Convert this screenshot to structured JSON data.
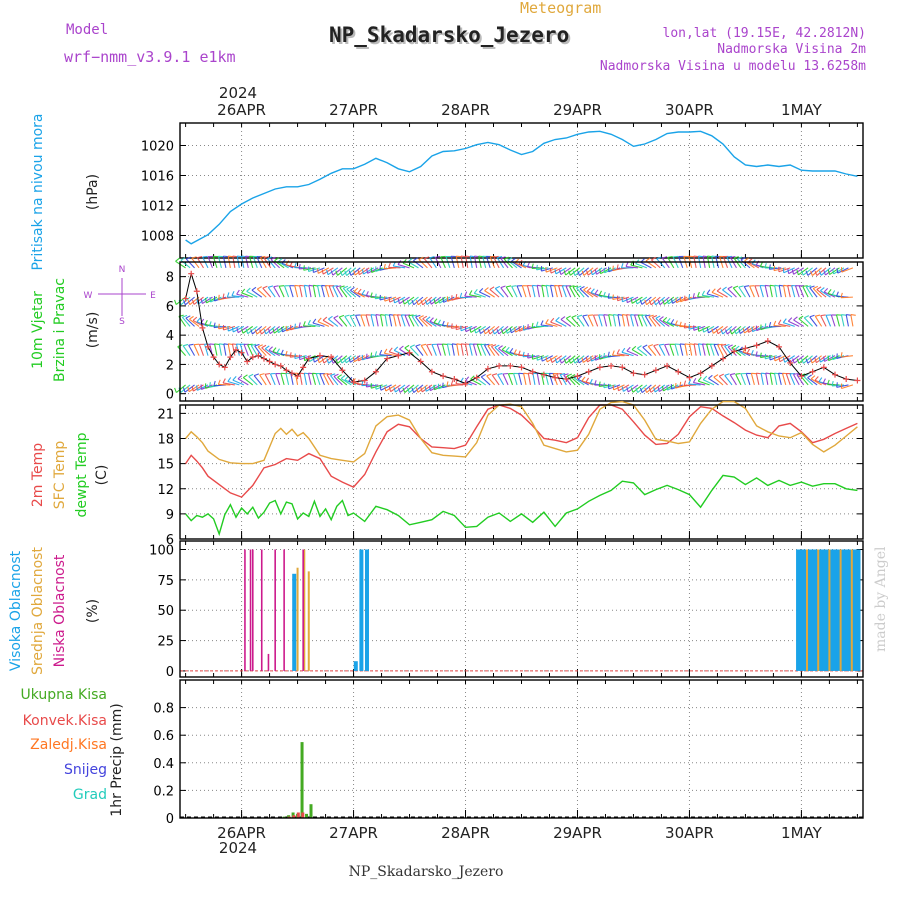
{
  "header": {
    "model_label": "Model",
    "model_name": "wrf−nmm_v3.9.1  e1km",
    "meteogram_label": "Meteogram",
    "station_title": "NP_Skadarsko_Jezero",
    "lonlat": "lon,lat (19.15E, 42.2812N)",
    "elevation": "Nadmorska Visina 2m",
    "model_elevation": "Nadmorska Visina u modelu 13.6258m",
    "year_top": "2024",
    "year_bottom": "2024",
    "footer_station": "NP_Skadarsko_Jezero",
    "credit": "made by Angel"
  },
  "colors": {
    "pressure": "#1aa3e8",
    "temp2m": "#e84a4a",
    "sfc_temp": "#e0a83c",
    "dewpt": "#22cc22",
    "high_cloud": "#1aa3e8",
    "mid_cloud": "#e0a83c",
    "low_cloud": "#cc1a8c",
    "total_precip": "#44aa22",
    "conv_precip": "#e84a4a",
    "frz_precip": "#ff7722",
    "snow": "#4444dd",
    "hail": "#22ccbb",
    "grid": "#888888"
  },
  "chart_data": [
    {
      "type": "line",
      "panel": "pressure",
      "ylabel_left": "Pritisak na nivou mora",
      "ylabel_unit": "(hPa)",
      "x_ticks": [
        "26APR",
        "27APR",
        "28APR",
        "29APR",
        "30APR",
        "1MAY"
      ],
      "x_range_days": [
        -0.55,
        5.55
      ],
      "ylim": [
        1005,
        1023
      ],
      "y_ticks": [
        1008,
        1012,
        1016,
        1020
      ],
      "grid": true,
      "series": [
        {
          "x_days": [
            -0.5,
            -0.45,
            -0.4,
            -0.3,
            -0.2,
            -0.1,
            0,
            0.1,
            0.2,
            0.3,
            0.4,
            0.5,
            0.6,
            0.7,
            0.8,
            0.9,
            1.0,
            1.1,
            1.2,
            1.3,
            1.4,
            1.5,
            1.6,
            1.7,
            1.8,
            1.9,
            2.0,
            2.1,
            2.2,
            2.3,
            2.4,
            2.5,
            2.6,
            2.7,
            2.8,
            2.9,
            3.0,
            3.1,
            3.2,
            3.3,
            3.4,
            3.5,
            3.6,
            3.7,
            3.8,
            3.9,
            4.0,
            4.1,
            4.2,
            4.3,
            4.4,
            4.5,
            4.6,
            4.7,
            4.8,
            4.9,
            5.0,
            5.1,
            5.2,
            5.3,
            5.4,
            5.5
          ],
          "values": [
            1007.4,
            1006.9,
            1007.3,
            1008.1,
            1009.5,
            1011.2,
            1012.2,
            1013.0,
            1013.6,
            1014.2,
            1014.5,
            1014.5,
            1014.8,
            1015.5,
            1016.3,
            1016.9,
            1016.9,
            1017.5,
            1018.3,
            1017.7,
            1016.9,
            1016.5,
            1017.2,
            1018.6,
            1019.2,
            1019.3,
            1019.6,
            1020.1,
            1020.4,
            1020.1,
            1019.4,
            1018.8,
            1019.2,
            1020.3,
            1020.8,
            1021.0,
            1021.5,
            1021.8,
            1021.9,
            1021.5,
            1020.8,
            1019.9,
            1020.2,
            1020.8,
            1021.6,
            1021.8,
            1021.8,
            1021.9,
            1021.3,
            1020.2,
            1018.5,
            1017.4,
            1017.2,
            1017.4,
            1017.2,
            1017.4,
            1016.7,
            1016.6,
            1016.6,
            1016.6,
            1016.2,
            1015.9
          ]
        }
      ]
    },
    {
      "type": "barbs",
      "panel": "wind",
      "ylabel_left_1": "10m Vjetar",
      "ylabel_left_2": "Brzina i Pravac",
      "ylabel_unit": "(m/s)",
      "compass": [
        "N",
        "E",
        "S",
        "W"
      ],
      "ylim": [
        -0.5,
        9
      ],
      "y_ticks": [
        0,
        2,
        4,
        6,
        8
      ],
      "grid": true,
      "series": [
        {
          "name": "speed",
          "x_days": [
            -0.5,
            -0.45,
            -0.4,
            -0.35,
            -0.3,
            -0.25,
            -0.2,
            -0.15,
            -0.1,
            -0.05,
            0,
            0.05,
            0.1,
            0.15,
            0.2,
            0.25,
            0.3,
            0.35,
            0.4,
            0.45,
            0.5,
            0.55,
            0.6,
            0.7,
            0.8,
            0.9,
            1.0,
            1.1,
            1.2,
            1.3,
            1.4,
            1.5,
            1.6,
            1.7,
            1.8,
            1.9,
            2.0,
            2.1,
            2.2,
            2.3,
            2.4,
            2.5,
            2.6,
            2.7,
            2.8,
            2.9,
            3.0,
            3.1,
            3.2,
            3.3,
            3.4,
            3.5,
            3.6,
            3.7,
            3.8,
            3.9,
            4.0,
            4.1,
            4.2,
            4.3,
            4.4,
            4.5,
            4.6,
            4.7,
            4.8,
            4.9,
            5.0,
            5.1,
            5.2,
            5.3,
            5.4,
            5.5
          ],
          "values": [
            6.5,
            8.2,
            7.0,
            4.5,
            3.2,
            2.5,
            2.0,
            1.8,
            2.5,
            3.0,
            2.8,
            2.2,
            2.5,
            2.6,
            2.4,
            2.2,
            2.0,
            1.9,
            1.6,
            1.4,
            1.2,
            1.8,
            2.4,
            2.6,
            2.5,
            1.6,
            0.8,
            0.9,
            1.5,
            2.4,
            2.6,
            2.8,
            2.2,
            1.5,
            1.2,
            1.0,
            0.7,
            1.1,
            1.7,
            1.9,
            1.9,
            1.8,
            1.5,
            1.3,
            1.1,
            1.0,
            1.2,
            1.5,
            1.8,
            1.9,
            1.8,
            1.4,
            1.3,
            1.6,
            1.9,
            1.5,
            1.1,
            1.4,
            1.9,
            2.4,
            2.9,
            3.1,
            3.3,
            3.6,
            3.2,
            2.1,
            1.2,
            1.5,
            1.8,
            1.3,
            1.0,
            0.9
          ]
        }
      ]
    },
    {
      "type": "line",
      "panel": "temperature",
      "ylabel_temp2m": "2m Temp",
      "ylabel_sfc": "SFC Temp",
      "ylabel_dewpt": "dewpt Temp",
      "ylabel_unit": "(C)",
      "ylim": [
        6,
        22
      ],
      "y_ticks": [
        6,
        9,
        12,
        15,
        18,
        21
      ],
      "grid": true,
      "series": [
        {
          "name": "2m Temp",
          "x_days": [
            -0.5,
            -0.45,
            -0.4,
            -0.35,
            -0.3,
            -0.2,
            -0.1,
            0,
            0.1,
            0.2,
            0.3,
            0.4,
            0.5,
            0.6,
            0.7,
            0.8,
            0.9,
            1.0,
            1.1,
            1.2,
            1.3,
            1.4,
            1.5,
            1.6,
            1.7,
            1.8,
            1.9,
            2.0,
            2.1,
            2.2,
            2.3,
            2.4,
            2.5,
            2.6,
            2.7,
            2.8,
            2.9,
            3.0,
            3.1,
            3.2,
            3.3,
            3.4,
            3.5,
            3.6,
            3.7,
            3.8,
            3.9,
            4.0,
            4.1,
            4.2,
            4.3,
            4.4,
            4.5,
            4.6,
            4.7,
            4.8,
            4.9,
            5.0,
            5.1,
            5.2,
            5.3,
            5.4,
            5.5
          ],
          "values": [
            15.0,
            16.0,
            15.3,
            14.5,
            13.5,
            12.5,
            11.5,
            11.0,
            12.4,
            14.5,
            14.9,
            15.6,
            15.4,
            16.2,
            15.6,
            13.5,
            12.8,
            12.2,
            13.7,
            16.4,
            18.8,
            19.7,
            19.4,
            18.0,
            17.0,
            16.9,
            16.8,
            17.2,
            19.4,
            21.5,
            22.0,
            21.6,
            20.8,
            19.5,
            18.0,
            17.8,
            17.5,
            18.1,
            20.5,
            22.0,
            22.0,
            21.5,
            20.0,
            18.4,
            17.3,
            17.4,
            18.5,
            20.6,
            21.8,
            21.6,
            20.7,
            19.9,
            19.0,
            18.4,
            18.1,
            19.5,
            19.8,
            18.8,
            17.5,
            17.9,
            18.6,
            19.2,
            19.8
          ]
        },
        {
          "name": "SFC Temp",
          "x_days": [
            -0.5,
            -0.45,
            -0.4,
            -0.35,
            -0.3,
            -0.2,
            -0.1,
            0,
            0.1,
            0.2,
            0.3,
            0.35,
            0.4,
            0.45,
            0.5,
            0.55,
            0.6,
            0.7,
            0.8,
            0.9,
            1.0,
            1.1,
            1.2,
            1.3,
            1.4,
            1.5,
            1.6,
            1.7,
            1.8,
            1.9,
            2.0,
            2.1,
            2.2,
            2.3,
            2.4,
            2.5,
            2.6,
            2.7,
            2.8,
            2.9,
            3.0,
            3.1,
            3.2,
            3.3,
            3.4,
            3.5,
            3.6,
            3.7,
            3.8,
            3.9,
            4.0,
            4.1,
            4.2,
            4.3,
            4.4,
            4.5,
            4.6,
            4.7,
            4.8,
            4.9,
            5.0,
            5.1,
            5.2,
            5.3,
            5.4,
            5.5
          ],
          "values": [
            18.0,
            18.8,
            18.2,
            17.5,
            16.5,
            15.5,
            15.1,
            15.0,
            15.0,
            15.4,
            18.6,
            19.2,
            18.5,
            19.1,
            18.3,
            18.7,
            18.0,
            16.0,
            15.6,
            15.4,
            15.2,
            16.2,
            19.5,
            20.6,
            20.8,
            20.2,
            18.0,
            16.3,
            16.0,
            15.9,
            15.8,
            17.5,
            20.8,
            22.0,
            22.1,
            21.8,
            19.8,
            17.2,
            16.8,
            16.4,
            16.6,
            18.5,
            21.5,
            22.3,
            22.4,
            22.0,
            20.2,
            17.9,
            17.7,
            17.4,
            17.6,
            19.8,
            21.5,
            22.4,
            22.4,
            21.6,
            19.5,
            18.8,
            18.3,
            18.1,
            18.7,
            17.3,
            16.4,
            17.2,
            18.3,
            19.4
          ]
        },
        {
          "name": "dewpt Temp",
          "x_days": [
            -0.5,
            -0.45,
            -0.4,
            -0.35,
            -0.3,
            -0.25,
            -0.2,
            -0.15,
            -0.1,
            -0.05,
            0,
            0.05,
            0.1,
            0.15,
            0.2,
            0.25,
            0.3,
            0.35,
            0.4,
            0.45,
            0.5,
            0.55,
            0.6,
            0.65,
            0.7,
            0.75,
            0.8,
            0.85,
            0.9,
            0.95,
            1.0,
            1.1,
            1.2,
            1.3,
            1.4,
            1.5,
            1.6,
            1.7,
            1.8,
            1.9,
            2.0,
            2.1,
            2.2,
            2.3,
            2.4,
            2.5,
            2.6,
            2.7,
            2.8,
            2.9,
            3.0,
            3.1,
            3.2,
            3.3,
            3.4,
            3.5,
            3.6,
            3.7,
            3.8,
            3.9,
            4.0,
            4.1,
            4.2,
            4.3,
            4.4,
            4.5,
            4.6,
            4.7,
            4.8,
            4.9,
            5.0,
            5.1,
            5.2,
            5.3,
            5.4,
            5.5
          ],
          "values": [
            9.0,
            8.2,
            8.8,
            8.6,
            9.0,
            8.4,
            6.6,
            8.9,
            10.1,
            8.6,
            9.7,
            9.0,
            9.8,
            8.5,
            9.2,
            10.3,
            10.6,
            9.0,
            10.4,
            10.2,
            8.4,
            9.1,
            8.7,
            10.5,
            8.7,
            9.6,
            8.3,
            9.9,
            10.6,
            8.8,
            9.1,
            8.1,
            9.9,
            9.5,
            8.8,
            7.7,
            8.0,
            8.3,
            9.3,
            8.8,
            7.4,
            7.5,
            8.6,
            9.1,
            8.1,
            9.0,
            8.0,
            9.2,
            7.5,
            9.1,
            9.6,
            10.5,
            11.2,
            11.8,
            12.9,
            12.7,
            11.3,
            11.9,
            12.4,
            11.9,
            11.3,
            9.8,
            11.8,
            13.6,
            13.4,
            12.5,
            13.3,
            12.4,
            13.0,
            12.4,
            12.8,
            12.3,
            12.6,
            12.6,
            12.0,
            11.8
          ]
        }
      ]
    },
    {
      "type": "bar",
      "panel": "cloud",
      "ylabel_high": "Visoka Oblacnost",
      "ylabel_mid": "Srednja Oblacnost",
      "ylabel_low": "Niska Oblacnost",
      "ylabel_unit": "(%)",
      "ylim": [
        -5,
        107
      ],
      "y_ticks": [
        0,
        25,
        50,
        75,
        100
      ],
      "grid": true,
      "series": [
        {
          "name": "high",
          "x_days": [
            0.47,
            1.02,
            1.07,
            1.12,
            4.97,
            5.0,
            5.03,
            5.06,
            5.09,
            5.12,
            5.15,
            5.18,
            5.21,
            5.24,
            5.27,
            5.3,
            5.33,
            5.36,
            5.39,
            5.42,
            5.45,
            5.48,
            5.51
          ],
          "values": [
            80,
            8,
            100,
            100,
            100,
            100,
            100,
            100,
            100,
            100,
            100,
            100,
            100,
            100,
            100,
            100,
            100,
            100,
            100,
            100,
            100,
            100,
            100
          ]
        },
        {
          "name": "mid",
          "x_days": [
            0.5,
            0.56,
            0.6,
            5.05,
            5.15,
            5.25,
            5.35,
            5.45
          ],
          "values": [
            85,
            100,
            82,
            100,
            100,
            100,
            100,
            100
          ]
        },
        {
          "name": "low",
          "x_days": [
            0.03,
            0.08,
            0.1,
            0.18,
            0.24,
            0.3,
            0.38,
            0.55
          ],
          "values": [
            100,
            100,
            100,
            100,
            14,
            100,
            100,
            100
          ]
        }
      ]
    },
    {
      "type": "bar",
      "panel": "precipitation",
      "ylabel_total": "Ukupna Kisa",
      "ylabel_conv": "Konvek.Kisa",
      "ylabel_frz": "Zaledj.Kisa",
      "ylabel_snow": "Snijeg",
      "ylabel_hail": "Grad",
      "ylabel_unit": "1hr Precip (mm)",
      "ylim": [
        0,
        1.0
      ],
      "y_ticks": [
        0,
        0.2,
        0.4,
        0.6,
        0.8
      ],
      "grid": true,
      "series": [
        {
          "name": "Ukupna Kisa",
          "x_days": [
            0.38,
            0.42,
            0.46,
            0.5,
            0.54,
            0.58,
            0.62
          ],
          "values": [
            0.01,
            0.02,
            0.04,
            0.03,
            0.55,
            0.03,
            0.1
          ]
        },
        {
          "name": "Konvek.Kisa",
          "x_days": [
            0.4,
            0.44,
            0.48,
            0.52
          ],
          "values": [
            0.01,
            0.02,
            0.04,
            0.04
          ]
        }
      ]
    }
  ]
}
